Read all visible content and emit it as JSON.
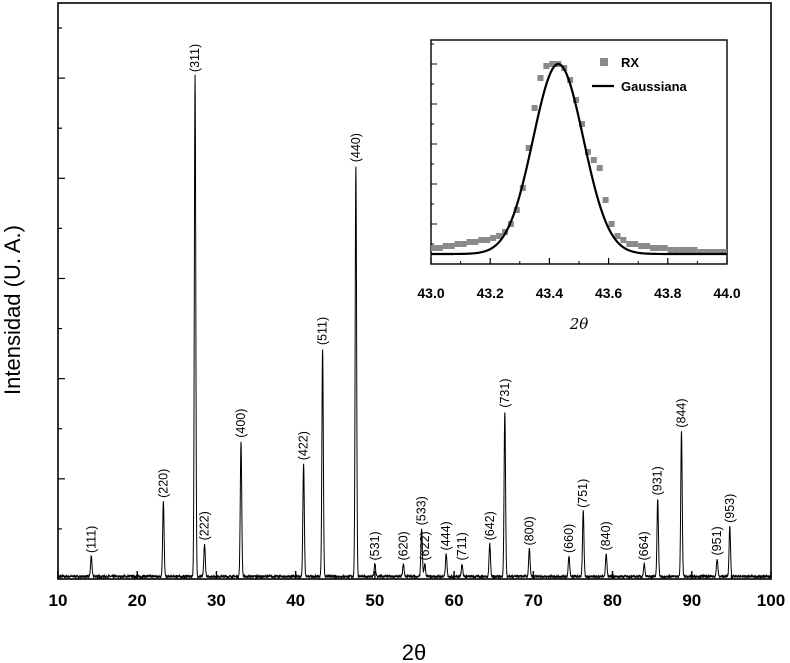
{
  "chart_data": [
    {
      "type": "line",
      "xlabel": "2θ",
      "ylabel": "Intensidad (U. A.)",
      "xlim": [
        10,
        100
      ],
      "ylim": [
        0,
        115
      ],
      "x_ticks": [
        "10",
        "20",
        "30",
        "40",
        "50",
        "60",
        "70",
        "80",
        "90",
        "100"
      ],
      "baseline": 0.5,
      "series": [
        {
          "peaks": [
            {
              "x": 14.2,
              "height": 4,
              "label": "(111)"
            },
            {
              "x": 23.3,
              "height": 15,
              "label": "(220)"
            },
            {
              "x": 27.3,
              "height": 100,
              "label": "(311)"
            },
            {
              "x": 28.5,
              "height": 6.5,
              "label": "(222)"
            },
            {
              "x": 33.1,
              "height": 27,
              "label": "(400)"
            },
            {
              "x": 41.0,
              "height": 22.5,
              "label": "(422)"
            },
            {
              "x": 43.4,
              "height": 45.5,
              "label": "(511)"
            },
            {
              "x": 47.6,
              "height": 82,
              "label": "(440)"
            },
            {
              "x": 50.0,
              "height": 2.5,
              "label": "(531)"
            },
            {
              "x": 53.6,
              "height": 2.5,
              "label": "(620)"
            },
            {
              "x": 55.9,
              "height": 9.5,
              "label": "(533)"
            },
            {
              "x": 56.3,
              "height": 2.5,
              "label": "(622)"
            },
            {
              "x": 59.0,
              "height": 4.5,
              "label": "(444)"
            },
            {
              "x": 61.0,
              "height": 2.5,
              "label": "(711)"
            },
            {
              "x": 64.5,
              "height": 6.5,
              "label": "(642)"
            },
            {
              "x": 66.4,
              "height": 33,
              "label": "(731)"
            },
            {
              "x": 69.5,
              "height": 5.5,
              "label": "(800)"
            },
            {
              "x": 74.5,
              "height": 4.0,
              "label": "(660)"
            },
            {
              "x": 76.3,
              "height": 13,
              "label": "(751)"
            },
            {
              "x": 79.2,
              "height": 4.5,
              "label": "(840)"
            },
            {
              "x": 84.0,
              "height": 2.5,
              "label": "(664)"
            },
            {
              "x": 85.7,
              "height": 15.5,
              "label": "(931)"
            },
            {
              "x": 88.7,
              "height": 29,
              "label": "(844)"
            },
            {
              "x": 93.2,
              "height": 3.5,
              "label": "(951)"
            },
            {
              "x": 94.8,
              "height": 10,
              "label": "(953)"
            }
          ]
        }
      ],
      "grid": false
    },
    {
      "type": "scatter",
      "xlabel": "2θ",
      "xlim": [
        43.0,
        44.0
      ],
      "ylim": [
        0,
        1.12
      ],
      "x_ticks": [
        "43.0",
        "43.2",
        "43.4",
        "43.6",
        "43.8",
        "44.0"
      ],
      "legend_position": "top-right",
      "series": [
        {
          "name": "RX",
          "color": "#8a8a8a",
          "x": [
            43.01,
            43.03,
            43.05,
            43.07,
            43.09,
            43.11,
            43.13,
            43.15,
            43.17,
            43.19,
            43.21,
            43.23,
            43.25,
            43.27,
            43.29,
            43.31,
            43.33,
            43.35,
            43.37,
            43.39,
            43.41,
            43.43,
            43.45,
            43.47,
            43.49,
            43.51,
            43.53,
            43.55,
            43.57,
            43.59,
            43.61,
            43.63,
            43.65,
            43.67,
            43.69,
            43.71,
            43.73,
            43.75,
            43.77,
            43.79,
            43.81,
            43.83,
            43.85,
            43.87,
            43.89,
            43.91,
            43.93,
            43.95,
            43.97,
            43.99
          ],
          "y": [
            0.08,
            0.08,
            0.09,
            0.09,
            0.1,
            0.1,
            0.11,
            0.11,
            0.12,
            0.12,
            0.13,
            0.14,
            0.16,
            0.2,
            0.27,
            0.38,
            0.58,
            0.78,
            0.93,
            0.99,
            1.0,
            1.0,
            0.98,
            0.92,
            0.82,
            0.7,
            0.56,
            0.52,
            0.48,
            0.32,
            0.2,
            0.14,
            0.12,
            0.1,
            0.1,
            0.09,
            0.09,
            0.08,
            0.08,
            0.08,
            0.07,
            0.07,
            0.07,
            0.07,
            0.07,
            0.06,
            0.06,
            0.06,
            0.06,
            0.06
          ]
        },
        {
          "name": "Gaussiana",
          "color": "#000000",
          "gaussian": {
            "center": 43.43,
            "sigma": 0.085,
            "amplitude": 0.95,
            "offset": 0.05
          }
        }
      ]
    }
  ]
}
